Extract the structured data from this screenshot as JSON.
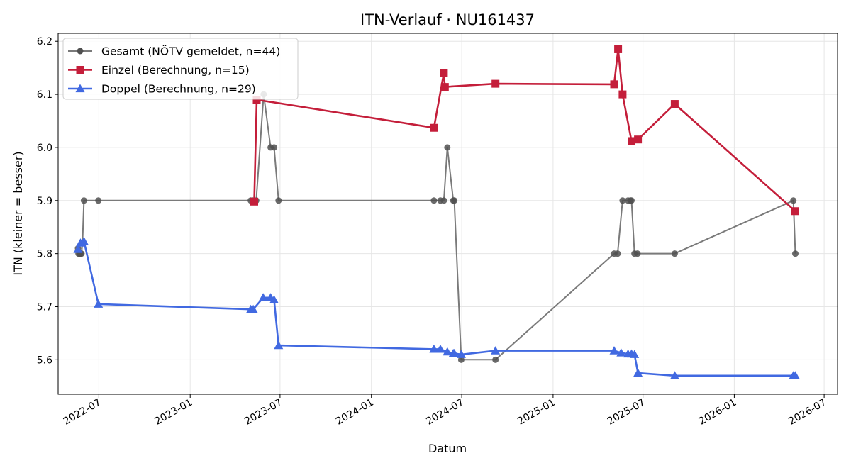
{
  "chart_data": {
    "type": "line",
    "title": "ITN-Verlauf · NU161437",
    "xlabel": "Datum",
    "ylabel": "ITN  (kleiner = besser)",
    "x_axis_type": "date",
    "xlim": [
      "2022-04-10",
      "2026-07-28"
    ],
    "ylim": [
      5.535,
      6.215
    ],
    "y_ticks": [
      5.6,
      5.7,
      5.8,
      5.9,
      6.0,
      6.1,
      6.2
    ],
    "y_tick_labels": [
      "5.6",
      "5.7",
      "5.8",
      "5.9",
      "6.0",
      "6.1",
      "6.2"
    ],
    "x_ticks": [
      "2022-07-01",
      "2023-01-01",
      "2023-07-01",
      "2024-01-01",
      "2024-07-01",
      "2025-01-01",
      "2025-07-01",
      "2026-01-01",
      "2026-07-01"
    ],
    "x_tick_labels": [
      "2022-07",
      "2023-01",
      "2023-07",
      "2024-01",
      "2024-07",
      "2025-01",
      "2025-07",
      "2026-01",
      "2026-07"
    ],
    "grid": true,
    "legend_position": "top-left",
    "series": [
      {
        "name": "Gesamt (NÖTV gemeldet, n=44)",
        "color": "#505050",
        "line_color": "#7a7a7a",
        "marker": "circle",
        "points": [
          [
            "2022-05-20",
            5.81
          ],
          [
            "2022-05-21",
            5.8
          ],
          [
            "2022-05-23",
            5.8
          ],
          [
            "2022-05-25",
            5.8
          ],
          [
            "2022-05-27",
            5.8
          ],
          [
            "2022-05-29",
            5.82
          ],
          [
            "2022-06-01",
            5.9
          ],
          [
            "2022-06-30",
            5.9
          ],
          [
            "2023-05-03",
            5.9
          ],
          [
            "2023-05-07",
            5.9
          ],
          [
            "2023-05-14",
            5.9
          ],
          [
            "2023-05-29",
            6.1
          ],
          [
            "2023-06-12",
            6.0
          ],
          [
            "2023-06-19",
            6.0
          ],
          [
            "2023-06-28",
            5.9
          ],
          [
            "2024-05-06",
            5.9
          ],
          [
            "2024-05-19",
            5.9
          ],
          [
            "2024-05-26",
            5.9
          ],
          [
            "2024-06-02",
            6.0
          ],
          [
            "2024-06-14",
            5.9
          ],
          [
            "2024-06-16",
            5.9
          ],
          [
            "2024-06-30",
            5.6
          ],
          [
            "2024-09-07",
            5.6
          ],
          [
            "2025-05-04",
            5.8
          ],
          [
            "2025-05-11",
            5.8
          ],
          [
            "2025-05-21",
            5.9
          ],
          [
            "2025-06-01",
            5.9
          ],
          [
            "2025-06-06",
            5.9
          ],
          [
            "2025-06-08",
            5.9
          ],
          [
            "2025-06-14",
            5.8
          ],
          [
            "2025-06-20",
            5.8
          ],
          [
            "2025-09-03",
            5.8
          ],
          [
            "2026-04-30",
            5.9
          ],
          [
            "2026-05-04",
            5.8
          ]
        ]
      },
      {
        "name": "Einzel (Berechnung, n=15)",
        "color": "#c41e3a",
        "line_color": "#c41e3a",
        "marker": "square",
        "points": [
          [
            "2023-05-10",
            5.898
          ],
          [
            "2023-05-15",
            6.09
          ],
          [
            "2024-05-06",
            6.037
          ],
          [
            "2024-05-26",
            6.14
          ],
          [
            "2024-05-28",
            6.114
          ],
          [
            "2024-09-07",
            6.12
          ],
          [
            "2025-05-04",
            6.119
          ],
          [
            "2025-05-12",
            6.185
          ],
          [
            "2025-05-21",
            6.1
          ],
          [
            "2025-06-08",
            6.012
          ],
          [
            "2025-06-21",
            6.015
          ],
          [
            "2025-09-03",
            6.082
          ],
          [
            "2026-05-04",
            5.88
          ]
        ]
      },
      {
        "name": "Doppel (Berechnung, n=29)",
        "color": "#4169e1",
        "line_color": "#4169e1",
        "marker": "triangle",
        "points": [
          [
            "2022-05-20",
            5.808
          ],
          [
            "2022-05-25",
            5.82
          ],
          [
            "2022-06-01",
            5.823
          ],
          [
            "2022-06-30",
            5.705
          ],
          [
            "2023-05-03",
            5.695
          ],
          [
            "2023-05-08",
            5.695
          ],
          [
            "2023-05-28",
            5.717
          ],
          [
            "2023-06-12",
            5.717
          ],
          [
            "2023-06-19",
            5.713
          ],
          [
            "2023-06-28",
            5.627
          ],
          [
            "2024-05-06",
            5.62
          ],
          [
            "2024-05-19",
            5.62
          ],
          [
            "2024-06-02",
            5.615
          ],
          [
            "2024-06-14",
            5.612
          ],
          [
            "2024-06-16",
            5.612
          ],
          [
            "2024-06-30",
            5.61
          ],
          [
            "2024-09-07",
            5.617
          ],
          [
            "2025-05-04",
            5.617
          ],
          [
            "2025-05-18",
            5.613
          ],
          [
            "2025-06-01",
            5.611
          ],
          [
            "2025-06-08",
            5.611
          ],
          [
            "2025-06-14",
            5.61
          ],
          [
            "2025-06-21",
            5.575
          ],
          [
            "2025-09-03",
            5.57
          ],
          [
            "2026-04-30",
            5.57
          ],
          [
            "2026-05-04",
            5.57
          ]
        ]
      }
    ]
  }
}
